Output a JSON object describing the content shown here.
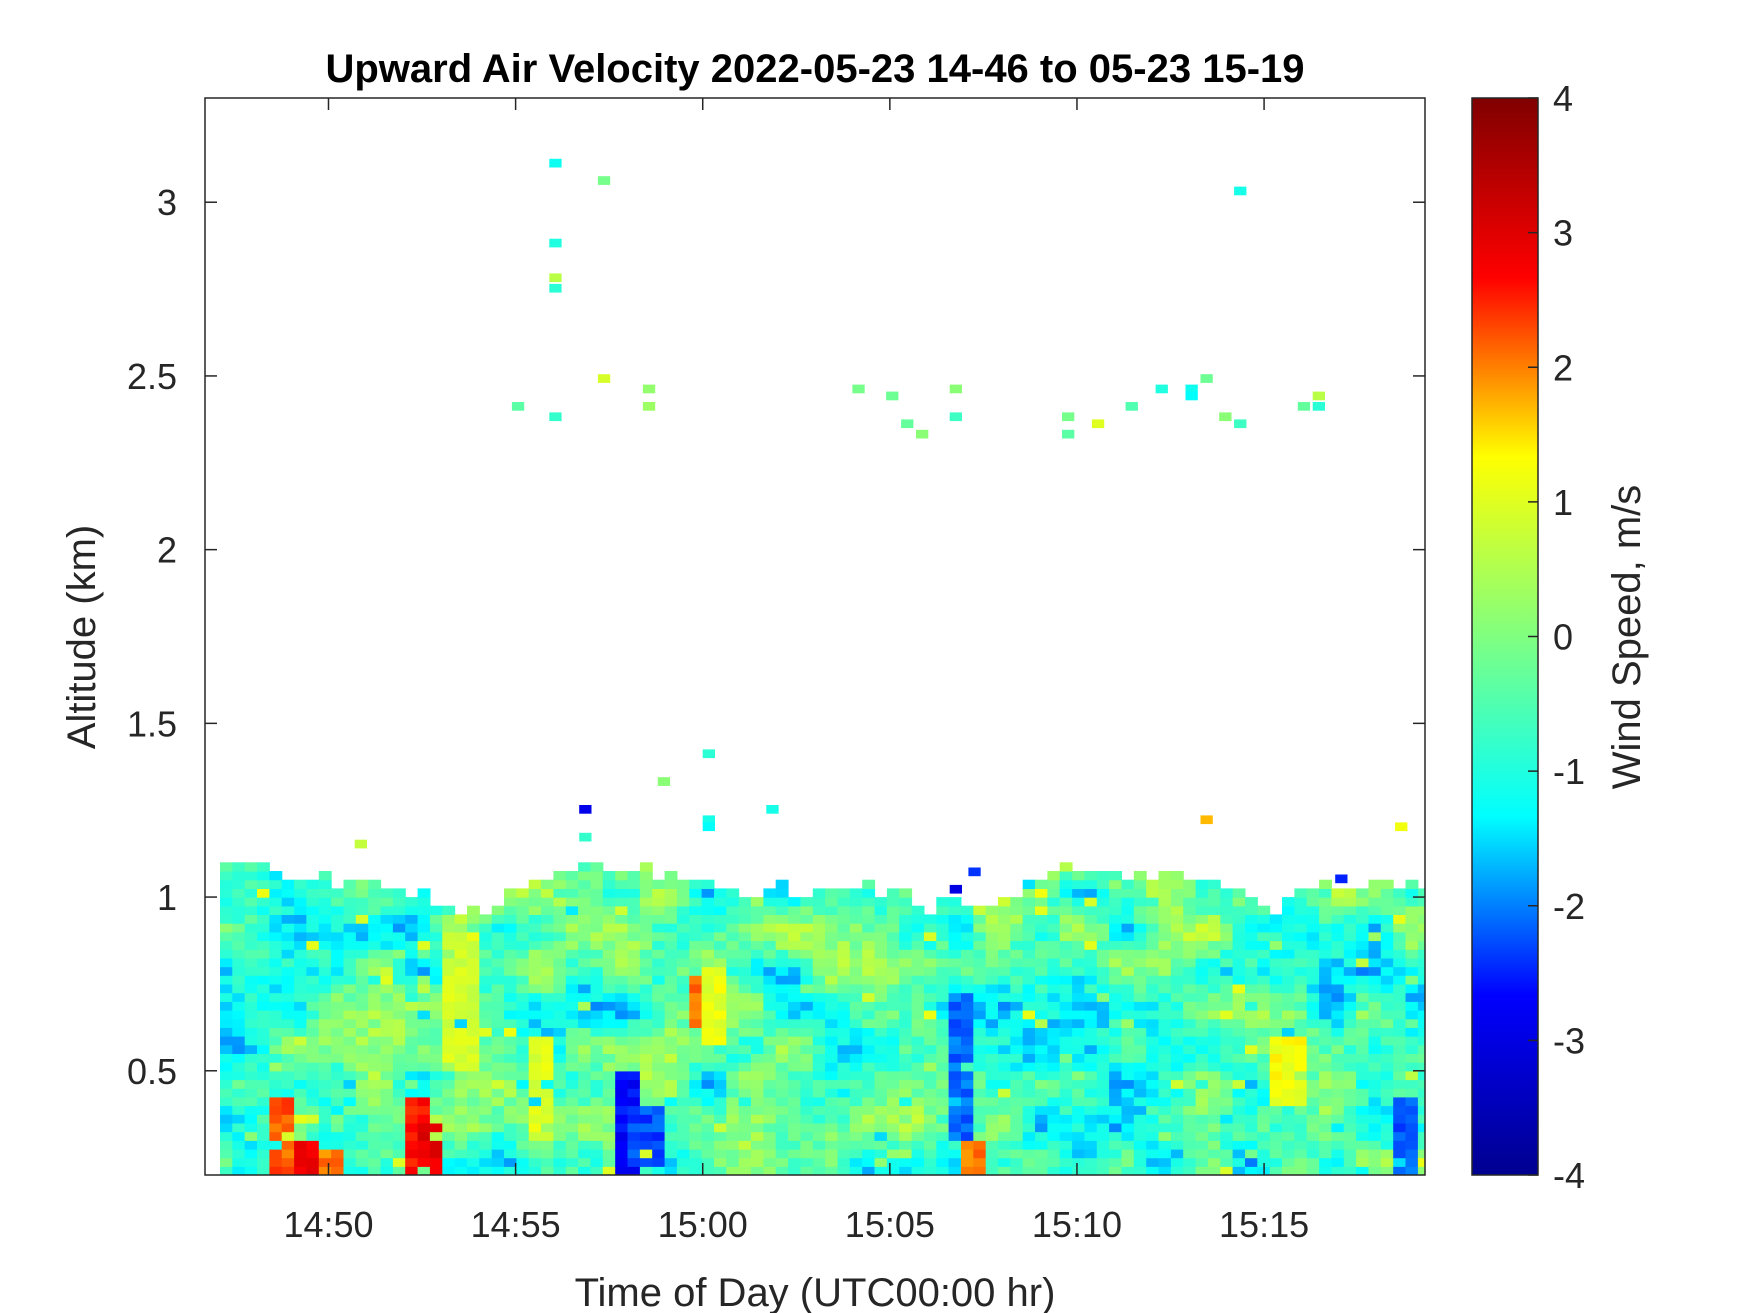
{
  "chart_data": {
    "type": "heatmap",
    "title": "Upward Air Velocity 2022-05-23 14-46 to 05-23 15-19",
    "xlabel": "Time of Day (UTC00:00 hr)",
    "ylabel": "Altitude (km)",
    "colorbar_label": "Wind Speed, m/s",
    "x_tick_labels": [
      "14:50",
      "14:55",
      "15:00",
      "15:05",
      "15:10",
      "15:15"
    ],
    "x_tick_minutes": [
      890,
      895,
      900,
      905,
      910,
      915
    ],
    "xlim_minutes": [
      886.7,
      919.3
    ],
    "y_ticks": [
      0.5,
      1,
      1.5,
      2,
      2.5,
      3
    ],
    "y_tick_labels": [
      "0.5",
      "1",
      "1.5",
      "2",
      "2.5",
      "3"
    ],
    "ylim": [
      0.2,
      3.3
    ],
    "colorbar_ticks": [
      -4,
      -3,
      -2,
      -1,
      0,
      1,
      2,
      3,
      4
    ],
    "colorbar_tick_labels": [
      "-4",
      "-3",
      "-2",
      "-1",
      "0",
      "1",
      "2",
      "3",
      "4"
    ],
    "clim": [
      -4,
      4
    ],
    "colormap": "jet",
    "colormap_stops": [
      "#00008f",
      "#0000ff",
      "#00ffff",
      "#80ff80",
      "#ffff00",
      "#ff0000",
      "#800000"
    ],
    "cell_width_minutes": 0.33,
    "cell_height_km": 0.025,
    "bulk_layer": {
      "time_range_minutes": [
        887.1,
        919.2
      ],
      "altitude_base_km": 0.2,
      "top_profile": [
        [
          887.1,
          1.07
        ],
        [
          888.5,
          1.07
        ],
        [
          889.5,
          1.03
        ],
        [
          890.5,
          1.05
        ],
        [
          891.5,
          1.02
        ],
        [
          892.3,
          0.99
        ],
        [
          893.0,
          0.97
        ],
        [
          894.0,
          0.95
        ],
        [
          895.0,
          1.04
        ],
        [
          896.0,
          1.07
        ],
        [
          897.0,
          1.09
        ],
        [
          898.0,
          1.06
        ],
        [
          899.0,
          1.05
        ],
        [
          900.0,
          1.04
        ],
        [
          901.0,
          0.98
        ],
        [
          902.0,
          1.02
        ],
        [
          903.0,
          1.0
        ],
        [
          904.0,
          1.03
        ],
        [
          905.0,
          1.0
        ],
        [
          906.0,
          0.96
        ],
        [
          907.5,
          0.97
        ],
        [
          908.5,
          1.02
        ],
        [
          909.5,
          1.07
        ],
        [
          911.0,
          1.05
        ],
        [
          912.0,
          1.07
        ],
        [
          913.0,
          1.04
        ],
        [
          914.0,
          1.01
        ],
        [
          914.6,
          0.98
        ],
        [
          915.2,
          0.94
        ],
        [
          916.0,
          1.02
        ],
        [
          917.0,
          1.01
        ],
        [
          918.0,
          1.04
        ],
        [
          919.2,
          1.03
        ]
      ],
      "features": [
        {
          "time_min": 888.5,
          "alt_min": 0.2,
          "alt_max": 0.42,
          "value": 2.2
        },
        {
          "time_min": 889.2,
          "alt_min": 0.2,
          "alt_max": 0.3,
          "value": 2.8
        },
        {
          "time_min": 889.9,
          "alt_min": 0.2,
          "alt_max": 0.26,
          "value": 2.0
        },
        {
          "time_min": 892.2,
          "alt_min": 0.2,
          "alt_max": 0.42,
          "value": 2.6
        },
        {
          "time_min": 892.6,
          "alt_min": 0.2,
          "alt_max": 0.35,
          "value": 2.9
        },
        {
          "time_min": 893.4,
          "alt_min": 0.5,
          "alt_max": 0.9,
          "value": 0.9
        },
        {
          "time_min": 895.6,
          "alt_min": 0.3,
          "alt_max": 0.6,
          "value": 1.0
        },
        {
          "time_min": 897.8,
          "alt_min": 0.2,
          "alt_max": 0.48,
          "value": -2.7
        },
        {
          "time_min": 898.3,
          "alt_min": 0.22,
          "alt_max": 0.4,
          "value": -2.3
        },
        {
          "time_min": 899.8,
          "alt_min": 0.62,
          "alt_max": 0.76,
          "value": 2.0
        },
        {
          "time_min": 900.2,
          "alt_min": 0.55,
          "alt_max": 0.78,
          "value": 1.1
        },
        {
          "time_min": 906.8,
          "alt_min": 0.3,
          "alt_max": 0.72,
          "value": -2.1
        },
        {
          "time_min": 907.1,
          "alt_min": 0.2,
          "alt_max": 0.3,
          "value": 2.0
        },
        {
          "time_min": 915.5,
          "alt_min": 0.38,
          "alt_max": 0.6,
          "value": 1.2
        },
        {
          "time_min": 918.5,
          "alt_min": 0.2,
          "alt_max": 0.42,
          "value": -2.2
        }
      ]
    },
    "isolated_cells": [
      {
        "time_min": 895.9,
        "alt_km": 3.1,
        "value": -1.2
      },
      {
        "time_min": 897.2,
        "alt_km": 3.05,
        "value": -0.1
      },
      {
        "time_min": 895.9,
        "alt_km": 2.87,
        "value": -1.0
      },
      {
        "time_min": 895.9,
        "alt_km": 2.77,
        "value": 0.6
      },
      {
        "time_min": 895.9,
        "alt_km": 2.74,
        "value": -0.9
      },
      {
        "time_min": 914.2,
        "alt_km": 3.02,
        "value": -1.1
      },
      {
        "time_min": 894.9,
        "alt_km": 2.4,
        "value": -0.4
      },
      {
        "time_min": 895.9,
        "alt_km": 2.37,
        "value": -0.8
      },
      {
        "time_min": 897.2,
        "alt_km": 2.48,
        "value": 0.9
      },
      {
        "time_min": 898.4,
        "alt_km": 2.45,
        "value": 0.2
      },
      {
        "time_min": 898.4,
        "alt_km": 2.4,
        "value": 0.3
      },
      {
        "time_min": 904.0,
        "alt_km": 2.45,
        "value": -0.1
      },
      {
        "time_min": 904.9,
        "alt_km": 2.43,
        "value": -0.2
      },
      {
        "time_min": 905.3,
        "alt_km": 2.35,
        "value": -0.3
      },
      {
        "time_min": 905.7,
        "alt_km": 2.32,
        "value": 0.1
      },
      {
        "time_min": 906.6,
        "alt_km": 2.45,
        "value": 0.1
      },
      {
        "time_min": 906.6,
        "alt_km": 2.37,
        "value": -0.7
      },
      {
        "time_min": 909.6,
        "alt_km": 2.37,
        "value": -0.1
      },
      {
        "time_min": 909.6,
        "alt_km": 2.32,
        "value": -0.4
      },
      {
        "time_min": 910.4,
        "alt_km": 2.35,
        "value": 1.0
      },
      {
        "time_min": 911.3,
        "alt_km": 2.4,
        "value": -0.5
      },
      {
        "time_min": 912.1,
        "alt_km": 2.45,
        "value": -1.0
      },
      {
        "time_min": 912.9,
        "alt_km": 2.45,
        "value": -1.2
      },
      {
        "time_min": 912.9,
        "alt_km": 2.43,
        "value": -1.3
      },
      {
        "time_min": 913.3,
        "alt_km": 2.48,
        "value": -0.2
      },
      {
        "time_min": 913.8,
        "alt_km": 2.37,
        "value": 0.1
      },
      {
        "time_min": 914.2,
        "alt_km": 2.35,
        "value": -0.7
      },
      {
        "time_min": 915.9,
        "alt_km": 2.4,
        "value": -0.3
      },
      {
        "time_min": 916.3,
        "alt_km": 2.43,
        "value": 0.6
      },
      {
        "time_min": 916.3,
        "alt_km": 2.4,
        "value": -0.9
      },
      {
        "time_min": 900.0,
        "alt_km": 1.4,
        "value": -0.9
      },
      {
        "time_min": 898.8,
        "alt_km": 1.32,
        "value": 0.1
      },
      {
        "time_min": 896.7,
        "alt_km": 1.24,
        "value": -2.9
      },
      {
        "time_min": 901.7,
        "alt_km": 1.24,
        "value": -1.1
      },
      {
        "time_min": 900.0,
        "alt_km": 1.21,
        "value": -1.1
      },
      {
        "time_min": 900.0,
        "alt_km": 1.19,
        "value": -1.3
      },
      {
        "time_min": 913.3,
        "alt_km": 1.21,
        "value": 1.7
      },
      {
        "time_min": 918.5,
        "alt_km": 1.19,
        "value": 1.2
      },
      {
        "time_min": 890.7,
        "alt_km": 1.14,
        "value": 0.7
      },
      {
        "time_min": 896.7,
        "alt_km": 1.16,
        "value": -0.8
      },
      {
        "time_min": 907.1,
        "alt_km": 1.06,
        "value": -2.4
      },
      {
        "time_min": 906.6,
        "alt_km": 1.01,
        "value": -3.0
      },
      {
        "time_min": 916.9,
        "alt_km": 1.04,
        "value": -2.5
      }
    ]
  }
}
